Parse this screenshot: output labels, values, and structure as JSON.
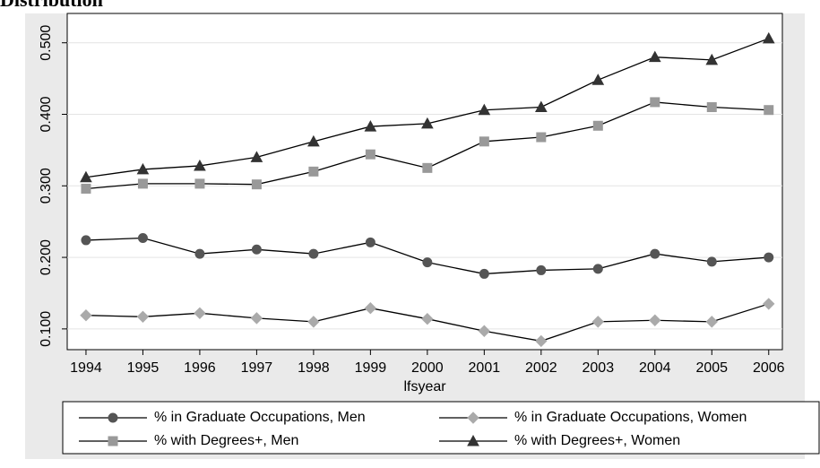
{
  "chart_data": {
    "type": "line",
    "title": "Distribution",
    "x_label": "lfsyear",
    "x": [
      1994,
      1995,
      1996,
      1997,
      1998,
      1999,
      2000,
      2001,
      2002,
      2003,
      2004,
      2005,
      2006
    ],
    "xlim": [
      1993.67,
      2006.24
    ],
    "xticks": [
      1994,
      1995,
      1996,
      1997,
      1998,
      1999,
      2000,
      2001,
      2002,
      2003,
      2004,
      2005,
      2006
    ],
    "ylim": [
      0.071,
      0.541
    ],
    "yticks": [
      {
        "value": 0.1,
        "label": "0.100"
      },
      {
        "value": 0.2,
        "label": "0.200"
      },
      {
        "value": 0.3,
        "label": "0.300"
      },
      {
        "value": 0.4,
        "label": "0.400"
      },
      {
        "value": 0.5,
        "label": "0.500"
      }
    ],
    "grid": true,
    "series": [
      {
        "name": "% in Graduate Occupations, Men",
        "color": "#555555",
        "marker": "circle",
        "values": [
          0.224,
          0.227,
          0.205,
          0.211,
          0.205,
          0.221,
          0.193,
          0.177,
          0.182,
          0.184,
          0.205,
          0.194,
          0.2
        ]
      },
      {
        "name": "% in Graduate Occupations, Women",
        "color": "#aaaaaa",
        "marker": "diamond",
        "values": [
          0.119,
          0.117,
          0.122,
          0.115,
          0.11,
          0.129,
          0.114,
          0.097,
          0.083,
          0.11,
          0.112,
          0.11,
          0.135
        ]
      },
      {
        "name": "% with Degrees+, Men",
        "color": "#999999",
        "marker": "square",
        "values": [
          0.296,
          0.303,
          0.303,
          0.302,
          0.32,
          0.344,
          0.325,
          0.362,
          0.368,
          0.384,
          0.417,
          0.41,
          0.406
        ]
      },
      {
        "name": "% with Degrees+, Women",
        "color": "#333333",
        "marker": "triangle",
        "values": [
          0.312,
          0.323,
          0.328,
          0.34,
          0.362,
          0.383,
          0.387,
          0.406,
          0.41,
          0.448,
          0.48,
          0.476,
          0.506
        ]
      }
    ]
  }
}
